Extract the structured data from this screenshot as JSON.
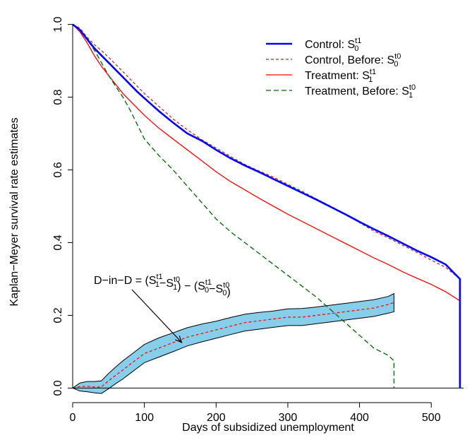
{
  "chart_data": {
    "type": "line",
    "xlabel": "Days of subsidized unemployment",
    "ylabel": "Kaplan−Meyer survival rate estimates",
    "xlim": [
      0,
      545
    ],
    "ylim": [
      -0.04,
      1.04
    ],
    "xticks": [
      0,
      100,
      200,
      300,
      400,
      500
    ],
    "xtick_labels": [
      "0",
      "100",
      "200",
      "300",
      "400",
      "500"
    ],
    "yticks": [
      0.0,
      0.2,
      0.4,
      0.6,
      0.8,
      1.0
    ],
    "ytick_labels": [
      "0.0",
      "0.2",
      "0.4",
      "0.6",
      "0.8",
      "1.0"
    ],
    "legend_position": "top-right",
    "series": [
      {
        "name": "Control: S0^t1",
        "color": "#0000ff",
        "style": "solid-thick",
        "x": [
          0,
          10,
          20,
          30,
          40,
          50,
          60,
          70,
          80,
          90,
          100,
          120,
          140,
          160,
          180,
          200,
          220,
          240,
          260,
          280,
          300,
          320,
          340,
          360,
          380,
          400,
          420,
          440,
          460,
          480,
          500,
          520,
          540,
          540
        ],
        "y": [
          1.0,
          0.985,
          0.96,
          0.935,
          0.915,
          0.895,
          0.875,
          0.855,
          0.835,
          0.815,
          0.797,
          0.762,
          0.73,
          0.7,
          0.68,
          0.655,
          0.632,
          0.612,
          0.594,
          0.575,
          0.556,
          0.537,
          0.518,
          0.498,
          0.478,
          0.457,
          0.437,
          0.418,
          0.398,
          0.378,
          0.36,
          0.34,
          0.3,
          0.0
        ]
      },
      {
        "name": "Control, Before: S0^t0",
        "color": "#b22222",
        "style": "dashed",
        "x": [
          0,
          10,
          20,
          30,
          40,
          50,
          60,
          70,
          80,
          90,
          100,
          120,
          140,
          160,
          180,
          200,
          220,
          240,
          260,
          280,
          300,
          320,
          340,
          360,
          380,
          400,
          420,
          440,
          460,
          480,
          500,
          520,
          540
        ],
        "y": [
          1.0,
          0.99,
          0.965,
          0.945,
          0.928,
          0.91,
          0.89,
          0.87,
          0.85,
          0.83,
          0.81,
          0.775,
          0.74,
          0.71,
          0.683,
          0.66,
          0.637,
          0.615,
          0.597,
          0.58,
          0.56,
          0.541,
          0.52,
          0.5,
          0.478,
          0.455,
          0.432,
          0.413,
          0.393,
          0.373,
          0.352,
          0.332,
          0.3
        ]
      },
      {
        "name": "Treatment: S1^t1",
        "color": "#ff0000",
        "style": "solid",
        "x": [
          0,
          10,
          20,
          30,
          40,
          50,
          60,
          70,
          80,
          90,
          100,
          120,
          140,
          160,
          180,
          200,
          220,
          240,
          260,
          280,
          300,
          320,
          340,
          360,
          380,
          400,
          420,
          440,
          460,
          480,
          500,
          520,
          540,
          540
        ],
        "y": [
          1.0,
          0.98,
          0.95,
          0.915,
          0.885,
          0.86,
          0.835,
          0.81,
          0.79,
          0.77,
          0.75,
          0.715,
          0.685,
          0.655,
          0.625,
          0.595,
          0.568,
          0.545,
          0.522,
          0.5,
          0.478,
          0.458,
          0.438,
          0.418,
          0.398,
          0.378,
          0.358,
          0.34,
          0.32,
          0.302,
          0.285,
          0.265,
          0.24,
          0.0
        ]
      },
      {
        "name": "Treatment, Before: S1^t0",
        "color": "#006400",
        "style": "long-dash",
        "x": [
          0,
          10,
          20,
          30,
          40,
          50,
          60,
          70,
          80,
          90,
          100,
          120,
          140,
          160,
          180,
          200,
          220,
          240,
          260,
          280,
          300,
          320,
          340,
          360,
          380,
          400,
          420,
          440,
          448,
          448
        ],
        "y": [
          1.0,
          0.985,
          0.96,
          0.93,
          0.895,
          0.86,
          0.83,
          0.8,
          0.765,
          0.725,
          0.685,
          0.64,
          0.6,
          0.555,
          0.51,
          0.465,
          0.43,
          0.4,
          0.37,
          0.34,
          0.31,
          0.28,
          0.25,
          0.215,
          0.18,
          0.145,
          0.11,
          0.09,
          0.075,
          0.0
        ]
      }
    ],
    "did": {
      "label_lhs": "D−in−D = ",
      "band_color": "#87ceeb",
      "mean_color": "#ff0000",
      "x": [
        0,
        10,
        20,
        30,
        40,
        50,
        60,
        70,
        80,
        90,
        100,
        120,
        140,
        160,
        180,
        200,
        220,
        240,
        260,
        280,
        300,
        320,
        340,
        360,
        380,
        400,
        420,
        440,
        448
      ],
      "mean": [
        0.0,
        0.004,
        0.005,
        0.003,
        0.003,
        0.02,
        0.035,
        0.05,
        0.065,
        0.08,
        0.095,
        0.11,
        0.125,
        0.14,
        0.15,
        0.16,
        0.17,
        0.18,
        0.185,
        0.19,
        0.195,
        0.195,
        0.2,
        0.205,
        0.21,
        0.215,
        0.22,
        0.23,
        0.235
      ],
      "upper": [
        0.0,
        0.014,
        0.018,
        0.018,
        0.02,
        0.04,
        0.058,
        0.075,
        0.09,
        0.105,
        0.12,
        0.138,
        0.152,
        0.166,
        0.176,
        0.184,
        0.194,
        0.203,
        0.208,
        0.212,
        0.218,
        0.219,
        0.223,
        0.228,
        0.233,
        0.238,
        0.243,
        0.252,
        0.26
      ],
      "lower": [
        0.0,
        -0.008,
        -0.01,
        -0.013,
        -0.015,
        -0.002,
        0.012,
        0.025,
        0.04,
        0.055,
        0.07,
        0.085,
        0.1,
        0.116,
        0.127,
        0.137,
        0.147,
        0.157,
        0.162,
        0.167,
        0.172,
        0.172,
        0.177,
        0.182,
        0.187,
        0.192,
        0.197,
        0.206,
        0.21
      ]
    }
  }
}
